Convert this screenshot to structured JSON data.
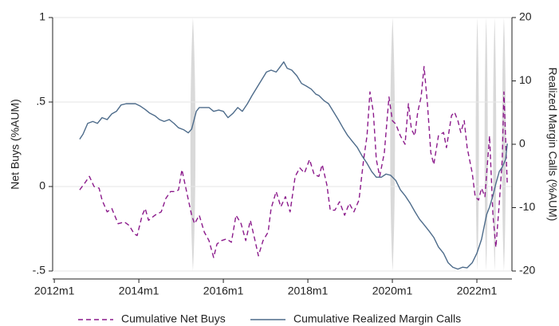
{
  "chart_data": {
    "type": "line",
    "y_label": "Net Buys (%AUM)",
    "y2_label": "Realized Margin Calls (%AUM)",
    "xlim": [
      2011.96,
      2022.83
    ],
    "xticks": [
      {
        "value": 2012,
        "label": "2012m1"
      },
      {
        "value": 2014,
        "label": "2014m1"
      },
      {
        "value": 2016,
        "label": "2016m1"
      },
      {
        "value": 2018,
        "label": "2018m1"
      },
      {
        "value": 2020,
        "label": "2020m1"
      },
      {
        "value": 2022,
        "label": "2022m1"
      }
    ],
    "ylim": [
      -0.5,
      1
    ],
    "yticks": [
      {
        "value": -0.5,
        "label": "-.5"
      },
      0,
      {
        "value": 0.5,
        "label": ".5"
      },
      1
    ],
    "y2lim": [
      -20,
      20
    ],
    "y2ticks": [
      -20,
      -10,
      0,
      10,
      20
    ],
    "grid": true,
    "shaded_periods": [
      [
        2015.2,
        2015.36
      ],
      [
        2019.93,
        2020.08
      ],
      [
        2021.96,
        2022.06
      ],
      [
        2022.17,
        2022.27
      ],
      [
        2022.37,
        2022.47
      ],
      [
        2022.58,
        2022.7
      ]
    ],
    "series": [
      {
        "name": "Cumulative Net Buys",
        "color": "#8b1a8b",
        "dash": true,
        "x": [
          2012.6,
          2012.72,
          2012.83,
          2012.94,
          2013.06,
          2013.13,
          2013.25,
          2013.36,
          2013.51,
          2013.66,
          2013.77,
          2013.89,
          2013.96,
          2014.08,
          2014.15,
          2014.23,
          2014.38,
          2014.53,
          2014.64,
          2014.75,
          2014.87,
          2014.94,
          2015.02,
          2015.13,
          2015.25,
          2015.32,
          2015.43,
          2015.55,
          2015.66,
          2015.77,
          2015.85,
          2015.96,
          2016.08,
          2016.19,
          2016.3,
          2016.42,
          2016.53,
          2016.64,
          2016.75,
          2016.83,
          2016.94,
          2017.06,
          2017.13,
          2017.25,
          2017.36,
          2017.47,
          2017.58,
          2017.7,
          2017.81,
          2017.92,
          2018.04,
          2018.15,
          2018.26,
          2018.34,
          2018.45,
          2018.53,
          2018.64,
          2018.75,
          2018.87,
          2018.98,
          2019.09,
          2019.21,
          2019.32,
          2019.4,
          2019.47,
          2019.55,
          2019.62,
          2019.7,
          2019.81,
          2019.92,
          2020.0,
          2020.08,
          2020.19,
          2020.3,
          2020.38,
          2020.45,
          2020.53,
          2020.6,
          2020.68,
          2020.75,
          2020.83,
          2020.91,
          2020.98,
          2021.09,
          2021.21,
          2021.28,
          2021.4,
          2021.47,
          2021.55,
          2021.62,
          2021.7,
          2021.77,
          2021.89,
          2021.96,
          2022.04,
          2022.11,
          2022.19,
          2022.3,
          2022.38,
          2022.45,
          2022.53,
          2022.6,
          2022.64,
          2022.72
        ],
        "values": [
          -0.02,
          0.02,
          0.06,
          0,
          -0.01,
          -0.08,
          -0.15,
          -0.13,
          -0.22,
          -0.21,
          -0.23,
          -0.28,
          -0.29,
          -0.17,
          -0.13,
          -0.2,
          -0.17,
          -0.15,
          -0.07,
          -0.03,
          -0.03,
          -0.02,
          0.1,
          -0.03,
          -0.17,
          -0.22,
          -0.17,
          -0.27,
          -0.32,
          -0.42,
          -0.34,
          -0.32,
          -0.31,
          -0.33,
          -0.17,
          -0.22,
          -0.32,
          -0.2,
          -0.32,
          -0.41,
          -0.32,
          -0.27,
          -0.13,
          -0.03,
          -0.12,
          -0.06,
          -0.15,
          0.06,
          0.11,
          0.08,
          0.16,
          0.07,
          0.06,
          0.13,
          0.01,
          -0.14,
          -0.14,
          -0.09,
          -0.17,
          -0.1,
          -0.15,
          -0.08,
          0.16,
          0.3,
          0.56,
          0.44,
          0.16,
          0.06,
          0.2,
          0.53,
          0.39,
          0.37,
          0.3,
          0.25,
          0.49,
          0.34,
          0.3,
          0.44,
          0.53,
          0.71,
          0.49,
          0.2,
          0.13,
          0.3,
          0.32,
          0.23,
          0.42,
          0.44,
          0.39,
          0.32,
          0.39,
          0.23,
          0.08,
          -0.06,
          -0.08,
          -0.01,
          -0.06,
          0.3,
          -0.17,
          -0.36,
          -0.1,
          0.16,
          0.56,
          0.01
        ]
      },
      {
        "name": "Cumulative Realized Margin Calls",
        "color": "#4d6b8a",
        "axis": "y2",
        "x": [
          2012.6,
          2012.68,
          2012.79,
          2012.91,
          2013.02,
          2013.13,
          2013.25,
          2013.36,
          2013.47,
          2013.58,
          2013.7,
          2013.81,
          2013.92,
          2014.04,
          2014.15,
          2014.26,
          2014.38,
          2014.49,
          2014.6,
          2014.72,
          2014.83,
          2014.94,
          2015.06,
          2015.17,
          2015.25,
          2015.36,
          2015.43,
          2015.55,
          2015.66,
          2015.77,
          2015.89,
          2016.0,
          2016.11,
          2016.23,
          2016.34,
          2016.45,
          2016.57,
          2016.68,
          2016.79,
          2016.91,
          2017.02,
          2017.13,
          2017.25,
          2017.32,
          2017.43,
          2017.51,
          2017.62,
          2017.74,
          2017.85,
          2017.96,
          2018.08,
          2018.19,
          2018.26,
          2018.38,
          2018.49,
          2018.6,
          2018.72,
          2018.83,
          2018.94,
          2019.06,
          2019.17,
          2019.28,
          2019.4,
          2019.51,
          2019.62,
          2019.74,
          2019.85,
          2019.96,
          2020.08,
          2020.19,
          2020.3,
          2020.42,
          2020.53,
          2020.64,
          2020.75,
          2020.87,
          2020.98,
          2021.09,
          2021.21,
          2021.32,
          2021.43,
          2021.55,
          2021.66,
          2021.77,
          2021.89,
          2022.0,
          2022.11,
          2022.23,
          2022.3,
          2022.38,
          2022.45,
          2022.53,
          2022.6,
          2022.68,
          2022.72
        ],
        "values": [
          0.8,
          1.6,
          3.3,
          3.6,
          3.3,
          4.2,
          3.9,
          4.8,
          5.2,
          6.2,
          6.4,
          6.4,
          6.4,
          6.0,
          5.5,
          4.9,
          4.5,
          3.9,
          3.6,
          3.9,
          3.3,
          2.6,
          2.3,
          1.8,
          2.4,
          5.2,
          5.8,
          5.8,
          5.8,
          5.2,
          5.4,
          5.2,
          4.2,
          4.9,
          5.8,
          5.2,
          6.4,
          7.7,
          8.9,
          10.2,
          11.4,
          11.7,
          11.4,
          12.0,
          13.0,
          12.0,
          11.7,
          10.8,
          9.6,
          9.2,
          8.7,
          7.9,
          7.7,
          6.9,
          6.4,
          5.2,
          3.9,
          2.6,
          1.4,
          0.4,
          -0.5,
          -1.8,
          -3.0,
          -4.3,
          -5.2,
          -5.2,
          -4.7,
          -4.9,
          -5.7,
          -7.2,
          -8.1,
          -9.3,
          -10.6,
          -11.8,
          -12.7,
          -13.7,
          -14.7,
          -16.2,
          -17.2,
          -18.7,
          -19.4,
          -19.7,
          -19.4,
          -19.5,
          -18.7,
          -17.2,
          -15.0,
          -11.1,
          -9.9,
          -8.1,
          -6.2,
          -4.3,
          -3.6,
          -2.4,
          0.1
        ]
      }
    ]
  }
}
